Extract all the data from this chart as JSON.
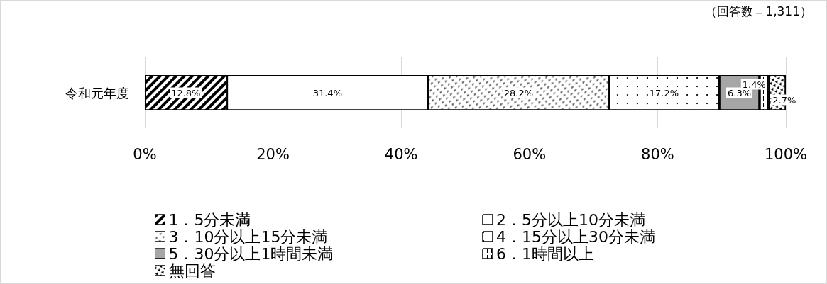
{
  "chart_data": {
    "type": "bar",
    "orientation": "horizontal",
    "stacked": true,
    "categories": [
      "令和元年度"
    ],
    "series": [
      {
        "name": "1．5分未満",
        "color": "#ffffff",
        "values": [
          12.8
        ],
        "value_labels": [
          "12.8%"
        ]
      },
      {
        "name": "2．5分以上10分未満",
        "color": "#ffffff",
        "values": [
          31.4
        ],
        "value_labels": [
          "31.4%"
        ]
      },
      {
        "name": "3．10分以上15分未満",
        "color": "#ffffff",
        "values": [
          28.2
        ],
        "value_labels": [
          "28.2%"
        ]
      },
      {
        "name": "4．15分以上30分未満",
        "color": "#ffffff",
        "values": [
          17.2
        ],
        "value_labels": [
          "17.2%"
        ]
      },
      {
        "name": "5．30分以上1時間未満",
        "color": "#a6a6a6",
        "values": [
          6.3
        ],
        "value_labels": [
          "6.3%"
        ]
      },
      {
        "name": "6．1時間以上",
        "color": "#ffffff",
        "values": [
          1.4
        ],
        "value_labels": [
          "1.4%"
        ]
      },
      {
        "name": "無回答",
        "color": "#ffffff",
        "values": [
          2.7
        ],
        "value_labels": [
          "2.7%"
        ]
      }
    ],
    "xlim": [
      0,
      100
    ],
    "xticks": [
      {
        "value": 0,
        "label": "0%"
      },
      {
        "value": 20,
        "label": "20%"
      },
      {
        "value": 40,
        "label": "40%"
      },
      {
        "value": 60,
        "label": "60%"
      },
      {
        "value": 80,
        "label": "80%"
      },
      {
        "value": 100,
        "label": "100%"
      }
    ],
    "grid": "x",
    "legend": "bottom",
    "annotations": [
      "（回答数＝1,311）"
    ]
  }
}
